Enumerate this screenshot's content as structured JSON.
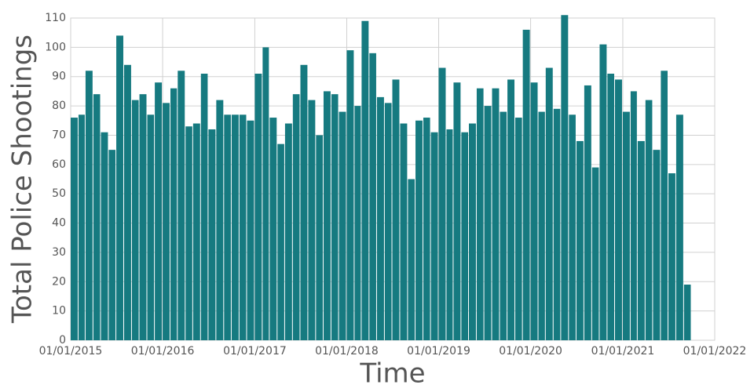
{
  "chart_data": {
    "type": "bar",
    "y_label": "Total Police Shootings",
    "x_label": "Time",
    "color": "#167a80",
    "grid": true,
    "x": [
      "2015-01",
      "2015-02",
      "2015-03",
      "2015-04",
      "2015-05",
      "2015-06",
      "2015-07",
      "2015-08",
      "2015-09",
      "2015-10",
      "2015-11",
      "2015-12",
      "2016-01",
      "2016-02",
      "2016-03",
      "2016-04",
      "2016-05",
      "2016-06",
      "2016-07",
      "2016-08",
      "2016-09",
      "2016-10",
      "2016-11",
      "2016-12",
      "2017-01",
      "2017-02",
      "2017-03",
      "2017-04",
      "2017-05",
      "2017-06",
      "2017-07",
      "2017-08",
      "2017-09",
      "2017-10",
      "2017-11",
      "2017-12",
      "2018-01",
      "2018-02",
      "2018-03",
      "2018-04",
      "2018-05",
      "2018-06",
      "2018-07",
      "2018-08",
      "2018-09",
      "2018-10",
      "2018-11",
      "2018-12",
      "2019-01",
      "2019-02",
      "2019-03",
      "2019-04",
      "2019-05",
      "2019-06",
      "2019-07",
      "2019-08",
      "2019-09",
      "2019-10",
      "2019-11",
      "2019-12",
      "2020-01",
      "2020-02",
      "2020-03",
      "2020-04",
      "2020-05",
      "2020-06",
      "2020-07",
      "2020-08",
      "2020-09",
      "2020-10",
      "2020-11",
      "2020-12",
      "2021-01",
      "2021-02",
      "2021-03",
      "2021-04",
      "2021-05",
      "2021-06",
      "2021-07",
      "2021-08",
      "2021-09"
    ],
    "values": [
      76,
      77,
      92,
      84,
      71,
      65,
      104,
      94,
      82,
      84,
      77,
      88,
      81,
      86,
      92,
      73,
      74,
      91,
      72,
      82,
      77,
      77,
      77,
      75,
      91,
      100,
      76,
      67,
      74,
      84,
      94,
      82,
      70,
      85,
      84,
      78,
      99,
      80,
      109,
      98,
      83,
      81,
      89,
      74,
      55,
      75,
      76,
      71,
      93,
      72,
      88,
      71,
      74,
      86,
      80,
      86,
      78,
      89,
      76,
      106,
      88,
      78,
      93,
      79,
      111,
      77,
      68,
      87,
      59,
      101,
      91,
      89,
      78,
      85,
      68,
      82,
      65,
      92,
      57,
      77,
      19
    ],
    "xlim": [
      "2015-01-01",
      "2022-01-01"
    ],
    "xticks": [
      {
        "value": "2015-01-01",
        "label": "01/01/2015"
      },
      {
        "value": "2016-01-01",
        "label": "01/01/2016"
      },
      {
        "value": "2017-01-01",
        "label": "01/01/2017"
      },
      {
        "value": "2018-01-01",
        "label": "01/01/2018"
      },
      {
        "value": "2019-01-01",
        "label": "01/01/2019"
      },
      {
        "value": "2020-01-01",
        "label": "01/01/2020"
      },
      {
        "value": "2021-01-01",
        "label": "01/01/2021"
      },
      {
        "value": "2022-01-01",
        "label": "01/01/2022"
      }
    ],
    "ylim": [
      0,
      110
    ],
    "yticks": [
      0,
      10,
      20,
      30,
      40,
      50,
      60,
      70,
      80,
      90,
      100,
      110
    ]
  }
}
